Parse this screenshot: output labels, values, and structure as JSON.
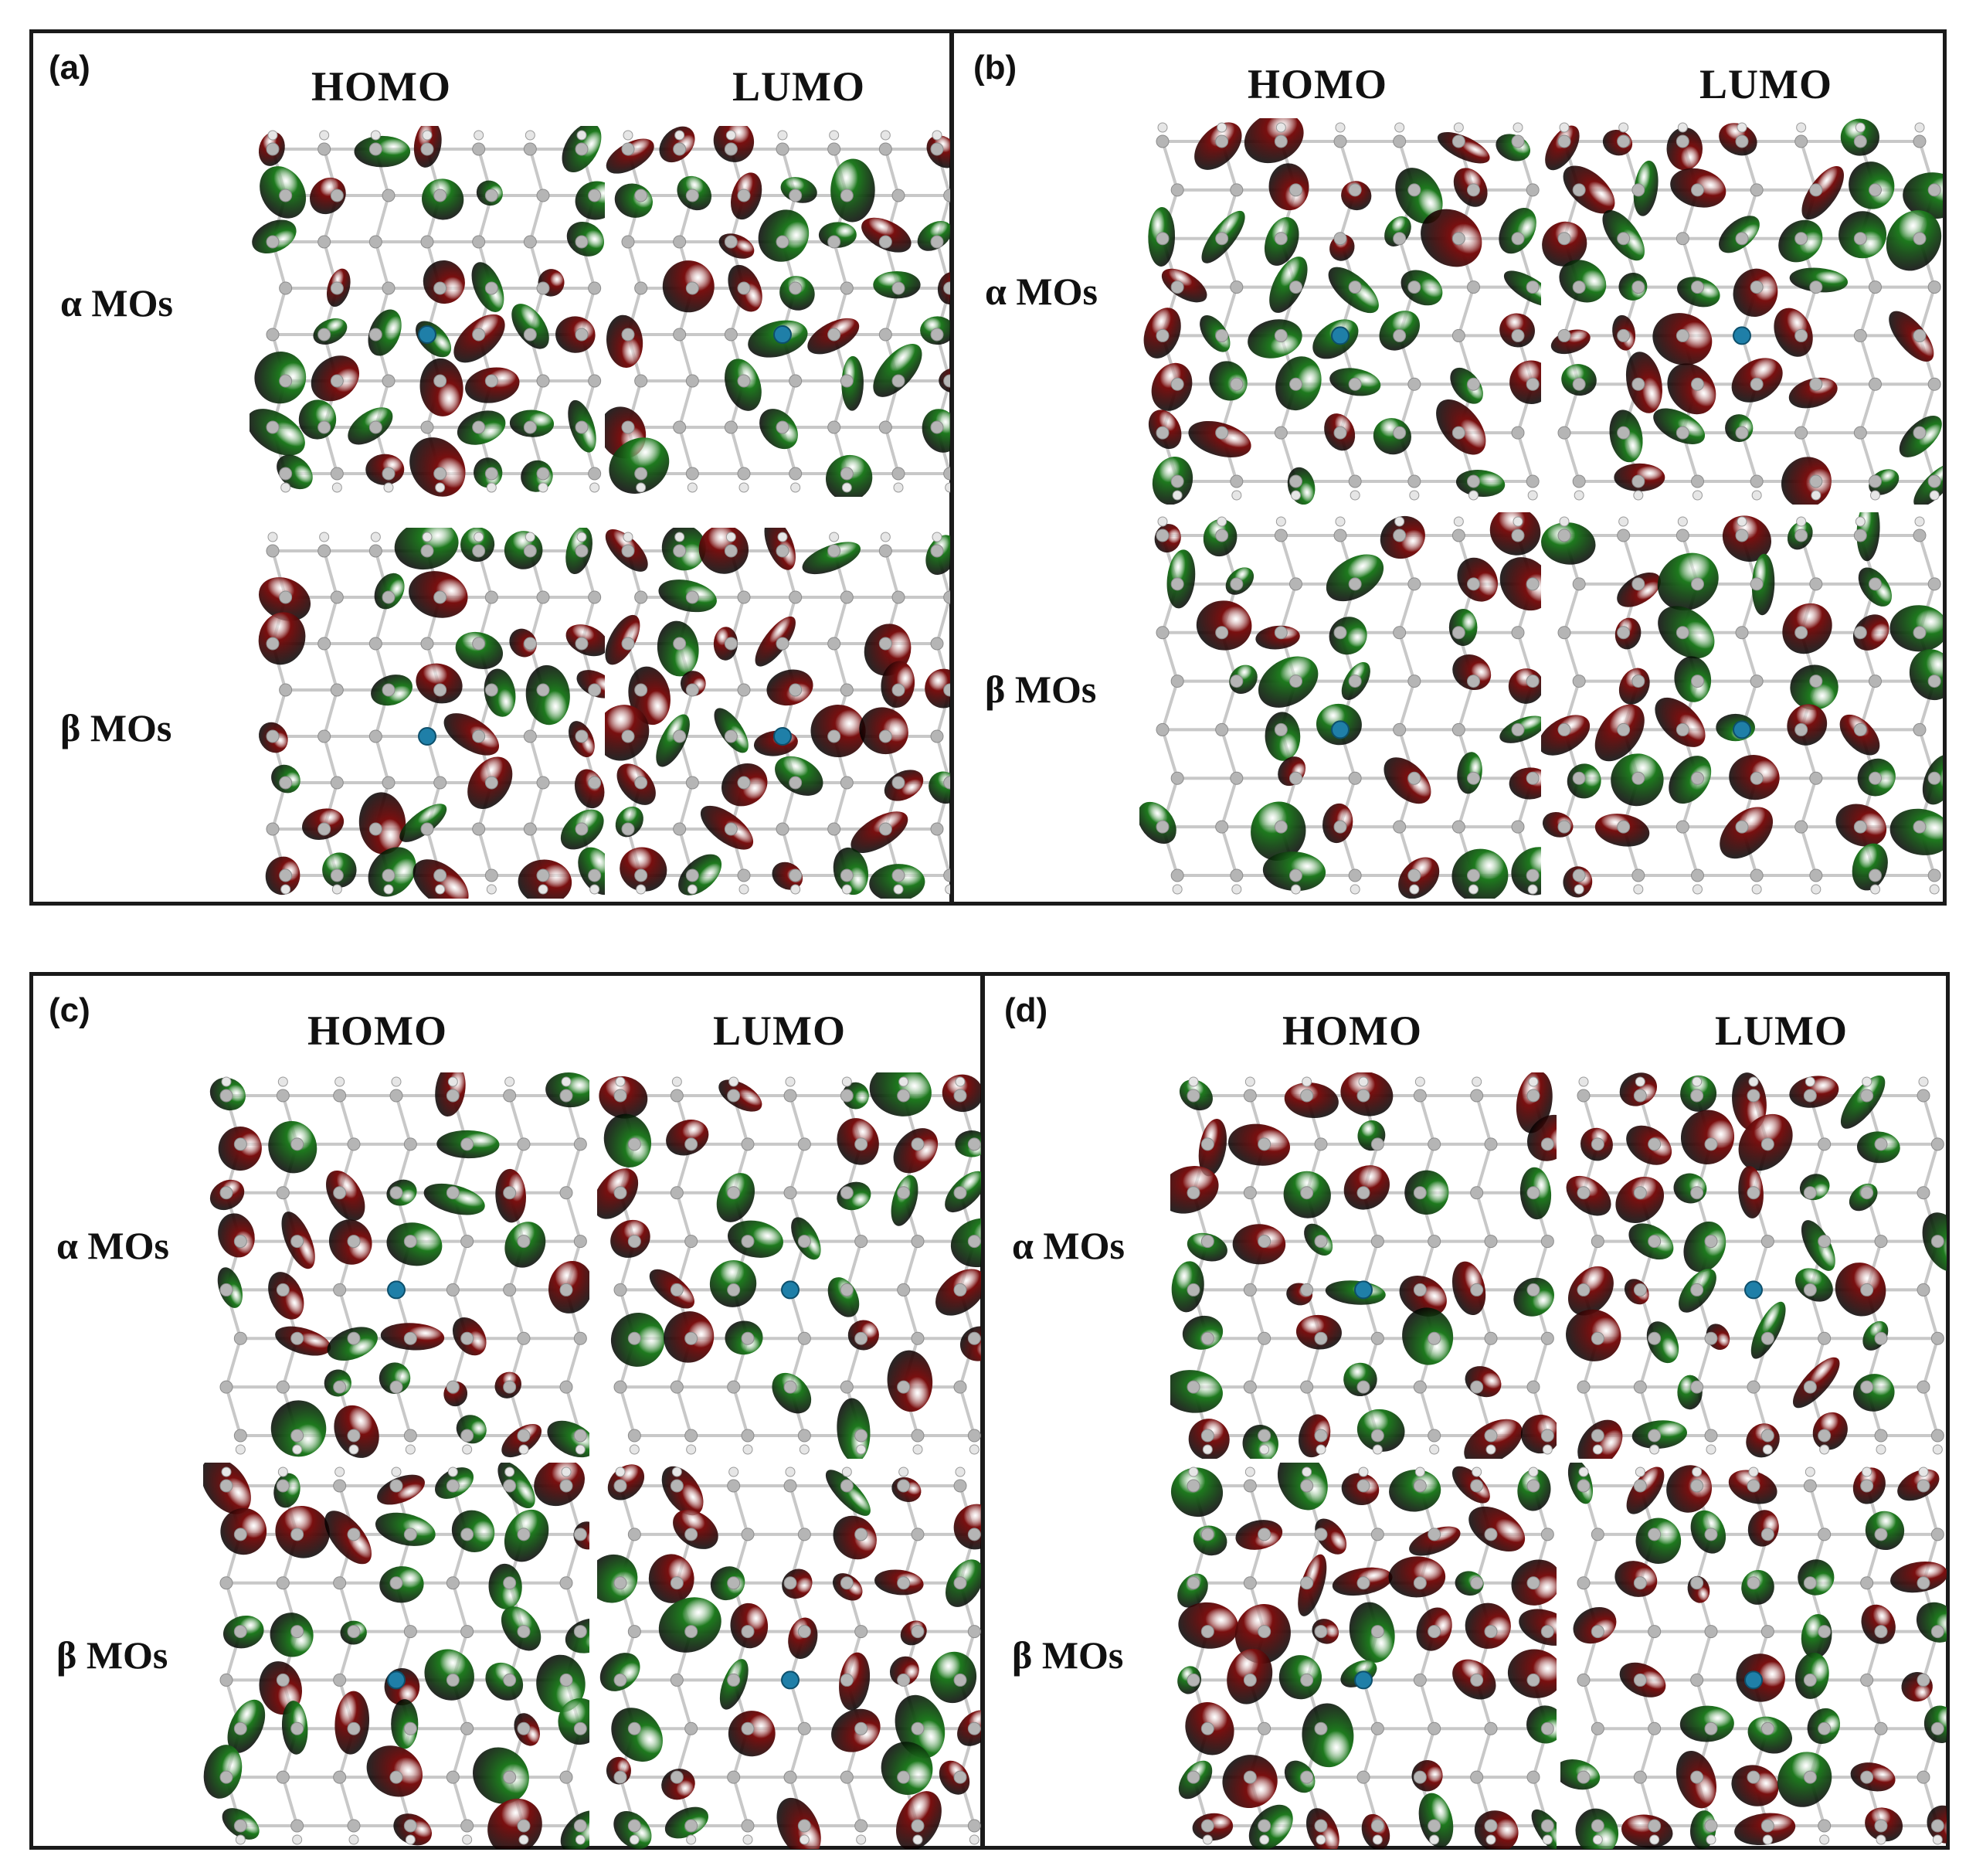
{
  "panels": [
    {
      "label": "(a)",
      "homo": "HOMO",
      "lumo": "LUMO",
      "alpha": "α MOs",
      "beta": "β MOs"
    },
    {
      "label": "(b)",
      "homo": "HOMO",
      "lumo": "LUMO",
      "alpha": "α MOs",
      "beta": "β MOs"
    },
    {
      "label": "(c)",
      "homo": "HOMO",
      "lumo": "LUMO",
      "alpha": "α MOs",
      "beta": "β MOs"
    },
    {
      "label": "(d)",
      "homo": "HOMO",
      "lumo": "LUMO",
      "alpha": "α MOs",
      "beta": "β MOs"
    }
  ],
  "colors": {
    "positive_lobe": "#1e7a1e",
    "negative_lobe": "#7a0f0f",
    "carbon_atom": "#b5b5b5",
    "hydrogen_atom": "#e6e6e6",
    "dopant_atom": "#1f7fa8",
    "frame": "#1a1a1a"
  }
}
